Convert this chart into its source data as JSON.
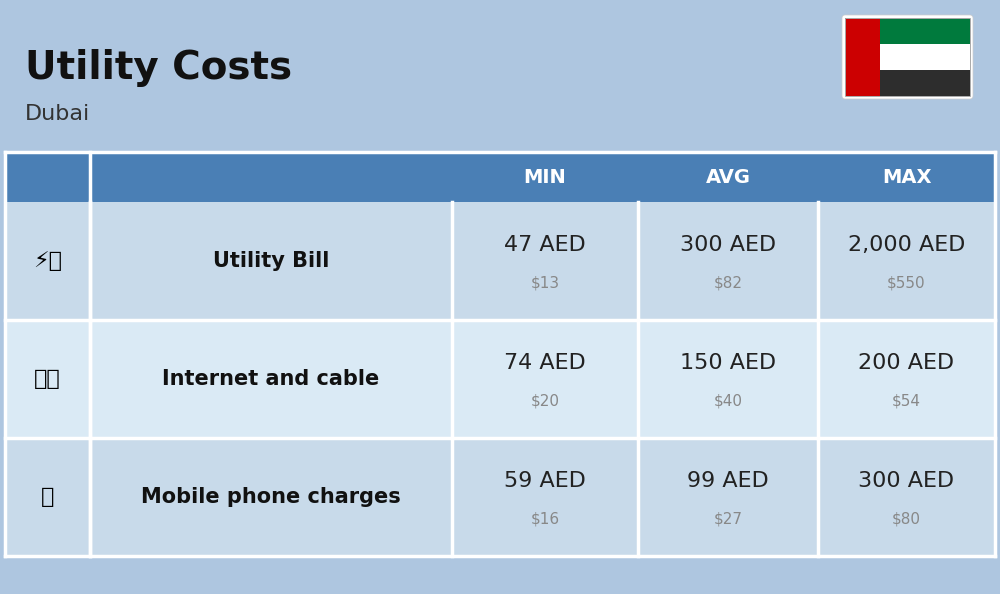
{
  "title": "Utility Costs",
  "subtitle": "Dubai",
  "background_color": "#aec6e0",
  "header_bg_color": "#4a7fb5",
  "header_text_color": "#ffffff",
  "row_bg_color_1": "#c8daea",
  "row_bg_color_2": "#daeaf5",
  "col_headers": [
    "MIN",
    "AVG",
    "MAX"
  ],
  "rows": [
    {
      "label": "Utility Bill",
      "min_aed": "47 AED",
      "min_usd": "$13",
      "avg_aed": "300 AED",
      "avg_usd": "$82",
      "max_aed": "2,000 AED",
      "max_usd": "$550"
    },
    {
      "label": "Internet and cable",
      "min_aed": "74 AED",
      "min_usd": "$20",
      "avg_aed": "150 AED",
      "avg_usd": "$40",
      "max_aed": "200 AED",
      "max_usd": "$54"
    },
    {
      "label": "Mobile phone charges",
      "min_aed": "59 AED",
      "min_usd": "$16",
      "avg_aed": "99 AED",
      "avg_usd": "$27",
      "max_aed": "300 AED",
      "max_usd": "$80"
    }
  ],
  "title_fontsize": 28,
  "subtitle_fontsize": 16,
  "header_fontsize": 14,
  "cell_fontsize_aed": 16,
  "cell_fontsize_usd": 11,
  "label_fontsize": 15,
  "usd_color": "#888888",
  "label_color": "#111111",
  "aed_color": "#222222"
}
